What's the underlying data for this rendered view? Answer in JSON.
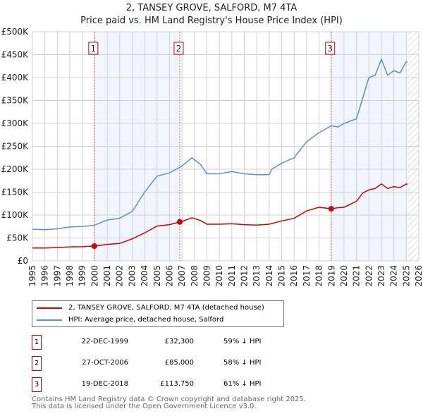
{
  "chart_data": {
    "type": "line",
    "title": "2, TANSEY GROVE, SALFORD, M7 4TA",
    "subtitle": "Price paid vs. HM Land Registry's House Price Index (HPI)",
    "xlim": [
      1995,
      2026
    ],
    "ylim": [
      0,
      500000
    ],
    "yticks": [
      0,
      50000,
      100000,
      150000,
      200000,
      250000,
      300000,
      350000,
      400000,
      450000,
      500000
    ],
    "ytick_labels": [
      "£0",
      "£50K",
      "£100K",
      "£150K",
      "£200K",
      "£250K",
      "£300K",
      "£350K",
      "£400K",
      "£450K",
      "£500K"
    ],
    "xticks": [
      "1995",
      "1996",
      "1997",
      "1998",
      "1999",
      "2000",
      "2001",
      "2002",
      "2003",
      "2004",
      "2005",
      "2006",
      "2007",
      "2008",
      "2009",
      "2010",
      "2011",
      "2012",
      "2013",
      "2014",
      "2015",
      "2016",
      "2017",
      "2018",
      "2019",
      "2020",
      "2021",
      "2022",
      "2023",
      "2024",
      "2025",
      "2026"
    ],
    "grid": true,
    "shaded_ranges": [
      [
        1999.97,
        2006.82
      ],
      [
        2018.97,
        2025.0
      ]
    ],
    "hatched_from": 2025.1,
    "series": [
      {
        "name": "2, TANSEY GROVE, SALFORD, M7 4TA (detached house)",
        "color": "#cc0000",
        "x": [
          1995,
          1996,
          1997,
          1998,
          1999,
          1999.97,
          2001,
          2002,
          2003,
          2004,
          2005,
          2006,
          2006.82,
          2007,
          2007.8,
          2008.5,
          2009,
          2010,
          2011,
          2012,
          2013,
          2014,
          2015,
          2016,
          2017,
          2018,
          2018.97,
          2019.5,
          2020,
          2021,
          2021.5,
          2022,
          2022.5,
          2023,
          2023.5,
          2024,
          2024.5,
          2025,
          2025.1
        ],
        "y": [
          28000,
          28000,
          29000,
          30500,
          31000,
          32300,
          36000,
          38000,
          48000,
          61000,
          76000,
          79000,
          85000,
          86000,
          94000,
          88000,
          80000,
          80000,
          81000,
          79000,
          78000,
          80000,
          87000,
          93000,
          109000,
          117000,
          113750,
          116000,
          117000,
          130000,
          148000,
          155000,
          158000,
          168000,
          158000,
          162000,
          160000,
          168000,
          167000
        ]
      },
      {
        "name": "HPI: Average price, detached house, Salford",
        "color": "#5b8fd4",
        "x": [
          1995,
          1996,
          1997,
          1998,
          1999,
          2000,
          2001,
          2002,
          2003,
          2003.3,
          2004,
          2005,
          2006,
          2007,
          2007.8,
          2008.5,
          2009,
          2010,
          2011,
          2012,
          2013,
          2014,
          2014.2,
          2015,
          2016,
          2017,
          2018,
          2019,
          2019.5,
          2020,
          2021,
          2021.5,
          2022,
          2022.5,
          2023,
          2023.5,
          2024,
          2024.5,
          2025,
          2025.1
        ],
        "y": [
          69000,
          68000,
          70000,
          74000,
          75000,
          78000,
          89000,
          93000,
          108000,
          120000,
          150000,
          185000,
          192000,
          207000,
          225000,
          210000,
          190000,
          190000,
          195000,
          190000,
          188000,
          188000,
          200000,
          213000,
          225000,
          260000,
          280000,
          295000,
          292000,
          300000,
          310000,
          355000,
          400000,
          405000,
          440000,
          405000,
          415000,
          410000,
          435000,
          433000
        ]
      }
    ],
    "markers": [
      {
        "label": "1",
        "x": 1999.97,
        "y": 32300
      },
      {
        "label": "2",
        "x": 2006.82,
        "y": 85000
      },
      {
        "label": "3",
        "x": 2018.97,
        "y": 113750
      }
    ]
  },
  "legend": {
    "red": "2, TANSEY GROVE, SALFORD, M7 4TA (detached house)",
    "blue": "HPI: Average price, detached house, Salford"
  },
  "transactions": [
    {
      "num": "1",
      "date": "22-DEC-1999",
      "price": "£32,300",
      "pct": "59% ↓ HPI"
    },
    {
      "num": "2",
      "date": "27-OCT-2006",
      "price": "£85,000",
      "pct": "58% ↓ HPI"
    },
    {
      "num": "3",
      "date": "19-DEC-2018",
      "price": "£113,750",
      "pct": "61% ↓ HPI"
    }
  ],
  "footer": [
    "Contains HM Land Registry data © Crown copyright and database right 2025.",
    "This data is licensed under the Open Government Licence v3.0."
  ]
}
